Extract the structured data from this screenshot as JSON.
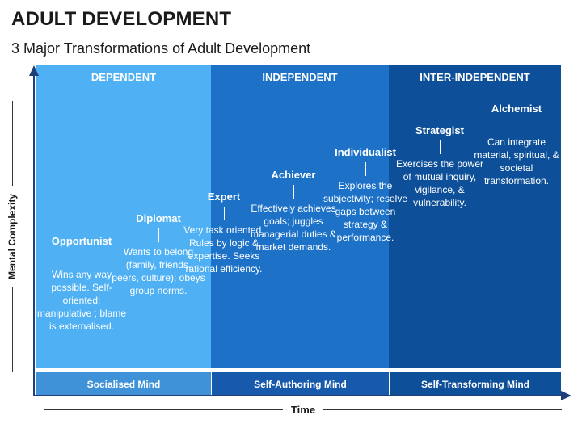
{
  "header": {
    "title": "ADULT DEVELOPMENT",
    "subtitle": "3 Major Transformations of Adult Development"
  },
  "bands": [
    {
      "label": "DEPENDENT",
      "color": "#4fb1f4"
    },
    {
      "label": "INDEPENDENT",
      "color": "#1d72c8"
    },
    {
      "label": "INTER-INDEPENDENT",
      "color": "#0d4f98"
    }
  ],
  "stages": [
    {
      "name": "Opportunist",
      "description": "Wins any way possible. Self-oriented; manipulative ; blame is externalised."
    },
    {
      "name": "Diplomat",
      "description": "Wants to belong (family, friends, peers, culture); obeys group norms."
    },
    {
      "name": "Expert",
      "description": "Very task oriented. Rules by logic & expertise. Seeks rational efficiency."
    },
    {
      "name": "Achiever",
      "description": "Effectively achieves goals; juggles managerial duties & market demands."
    },
    {
      "name": "Individualist",
      "description": "Explores the subjectivity; resolve gaps between strategy & performance."
    },
    {
      "name": "Strategist",
      "description": "Exercises the power of mutual inquiry, vigilance, & vulnerability."
    },
    {
      "name": "Alchemist",
      "description": "Can integrate material, spiritual, & societal transformation."
    }
  ],
  "minds": [
    {
      "label": "Socialised Mind"
    },
    {
      "label": "Self-Authoring Mind"
    },
    {
      "label": "Self-Transforming Mind"
    }
  ],
  "axes": {
    "y_label": "Mental Complexity",
    "x_label": "Time"
  },
  "colors": {
    "axis": "#1e3f7a",
    "text_dark": "#1a1a1a"
  }
}
